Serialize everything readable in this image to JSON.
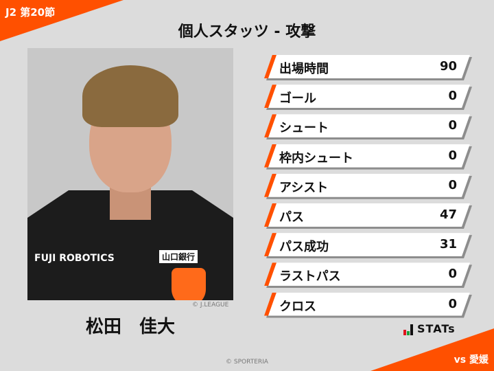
{
  "header": {
    "round": "J2 第20節",
    "title": "個人スタッツ - 攻撃",
    "opponent": "vs 愛媛"
  },
  "player": {
    "name": "松田　佳大",
    "photo_credit": "© J.LEAGUE",
    "sponsor": "FUJI ROBOTICS",
    "sponsor2": "山口銀行"
  },
  "stats": [
    {
      "label": "出場時間",
      "value": "90"
    },
    {
      "label": "ゴール",
      "value": "0"
    },
    {
      "label": "シュート",
      "value": "0"
    },
    {
      "label": "枠内シュート",
      "value": "0"
    },
    {
      "label": "アシスト",
      "value": "0"
    },
    {
      "label": "パス",
      "value": "47"
    },
    {
      "label": "パス成功",
      "value": "31"
    },
    {
      "label": "ラストパス",
      "value": "0"
    },
    {
      "label": "クロス",
      "value": "0"
    }
  ],
  "footer": {
    "brand": "STATs",
    "credit": "© SPORTERIA"
  },
  "colors": {
    "accent": "#ff5000",
    "background": "#dcdcdc"
  }
}
